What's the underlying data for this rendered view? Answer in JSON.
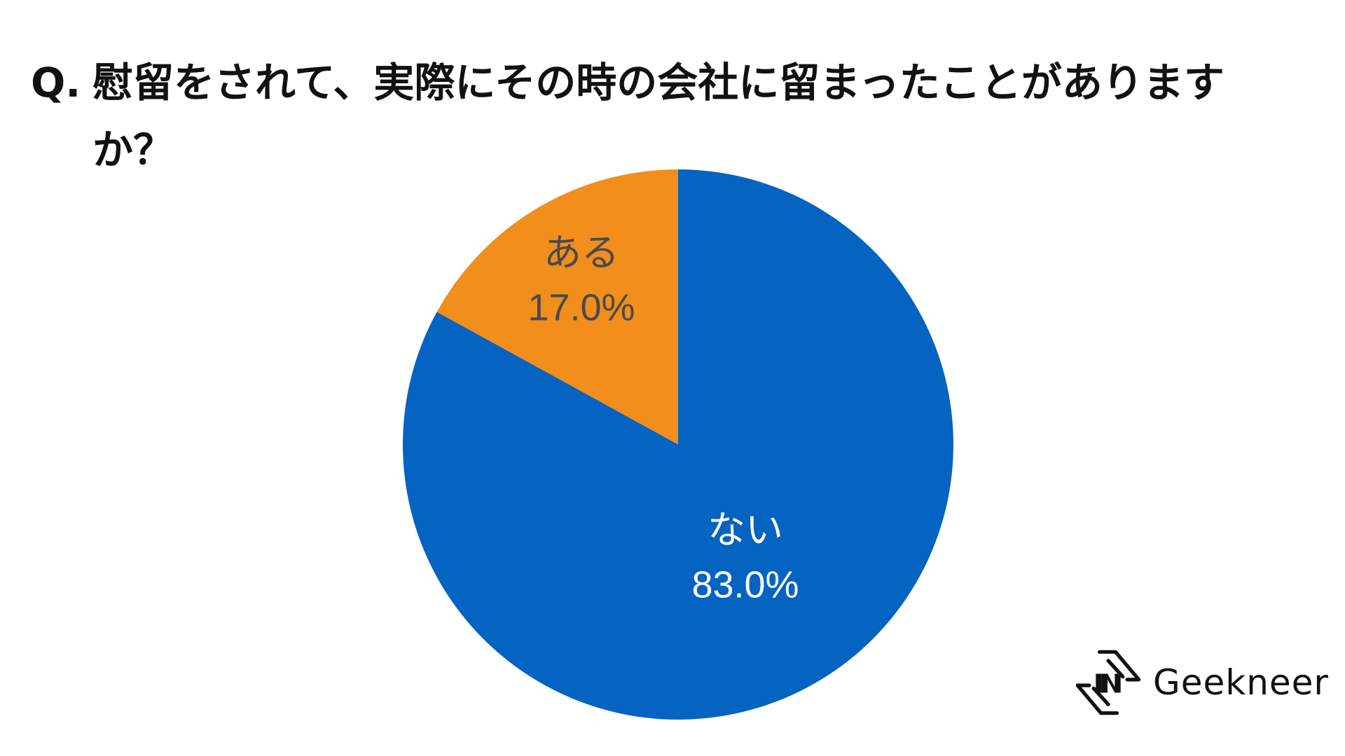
{
  "title": {
    "prefix": "Q.",
    "text": "慰留をされて、実際にその時の会社に留まったことがありますか？"
  },
  "chart_data": {
    "type": "pie",
    "start_angle_deg": 0,
    "direction": "counterclockwise",
    "slices": [
      {
        "label": "ある",
        "value_label": "17.0%",
        "value": 17.0,
        "color": "#F28E1C",
        "text_color": "#4a4a4a"
      },
      {
        "label": "ない",
        "value_label": "83.0%",
        "value": 83.0,
        "color": "#0563C1",
        "text_color": "#ffffff"
      }
    ],
    "legend": "none"
  },
  "brand": {
    "name": "Geekneer",
    "logo_icon": "geekneer-logo-icon"
  }
}
